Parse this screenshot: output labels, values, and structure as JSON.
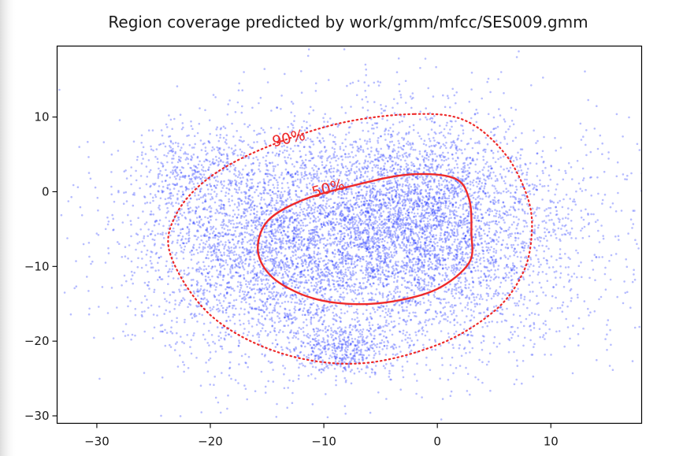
{
  "window": {
    "edge_fade_color": "#d9d9d9"
  },
  "chart_data": {
    "type": "scatter",
    "title": "Region coverage predicted by work/gmm/mfcc/SES009.gmm",
    "xlabel": "",
    "ylabel": "",
    "xlim": [
      -33.5,
      18
    ],
    "ylim": [
      -31,
      19.5
    ],
    "grid": false,
    "xticks": [
      -30,
      -20,
      -10,
      0,
      10
    ],
    "xtick_labels": [
      "−30",
      "−20",
      "−10",
      "0",
      "10"
    ],
    "yticks": [
      10,
      0,
      -10,
      -20,
      -30
    ],
    "ytick_labels": [
      "10",
      "0",
      "−10",
      "−20",
      "−30"
    ],
    "colors": {
      "points": "#1f33ff",
      "contours": "#ee2a2a",
      "axes": "#000000"
    },
    "scatter": {
      "description_count": 9000,
      "clusters": [
        {
          "cx": -5,
          "cy": -6,
          "sx": 9.5,
          "sy": 8.0,
          "weight": 0.62
        },
        {
          "cx": -1.5,
          "cy": -2.5,
          "sx": 4.0,
          "sy": 5.0,
          "weight": 0.12
        },
        {
          "cx": -8.5,
          "cy": -21.0,
          "sx": 2.0,
          "sy": 1.5,
          "weight": 0.04
        },
        {
          "cx": -22.0,
          "cy": 3.0,
          "sx": 2.0,
          "sy": 2.5,
          "weight": 0.03
        },
        {
          "cx": -16.0,
          "cy": -8.0,
          "sx": 6.0,
          "sy": 7.5,
          "weight": 0.19
        }
      ],
      "marker_size": 1.3,
      "alpha": 0.32
    },
    "contours": [
      {
        "label": "50%",
        "style": "solid",
        "label_at": [
          -9.5,
          -0.2
        ],
        "label_rotation": -15,
        "points": [
          [
            -2.5,
            2.3
          ],
          [
            1.5,
            1.8
          ],
          [
            2.8,
            -1.0
          ],
          [
            3.0,
            -5.5
          ],
          [
            2.8,
            -9.5
          ],
          [
            0.0,
            -13.0
          ],
          [
            -4.0,
            -14.7
          ],
          [
            -8.0,
            -15.0
          ],
          [
            -11.5,
            -14.0
          ],
          [
            -14.5,
            -11.5
          ],
          [
            -15.8,
            -8.0
          ],
          [
            -15.0,
            -4.0
          ],
          [
            -12.0,
            -1.2
          ],
          [
            -7.5,
            0.8
          ]
        ]
      },
      {
        "label": "90%",
        "style": "dotted",
        "label_at": [
          -13.0,
          6.5
        ],
        "label_rotation": -13,
        "points": [
          [
            -2.0,
            10.4
          ],
          [
            2.5,
            9.5
          ],
          [
            6.0,
            5.0
          ],
          [
            8.0,
            -1.0
          ],
          [
            8.3,
            -6.0
          ],
          [
            7.5,
            -11.0
          ],
          [
            5.0,
            -16.0
          ],
          [
            0.0,
            -20.5
          ],
          [
            -7.0,
            -23.0
          ],
          [
            -14.0,
            -21.5
          ],
          [
            -20.0,
            -16.5
          ],
          [
            -23.5,
            -8.5
          ],
          [
            -23.0,
            -3.0
          ],
          [
            -20.0,
            2.0
          ],
          [
            -15.0,
            6.0
          ],
          [
            -8.5,
            9.2
          ]
        ]
      }
    ]
  }
}
